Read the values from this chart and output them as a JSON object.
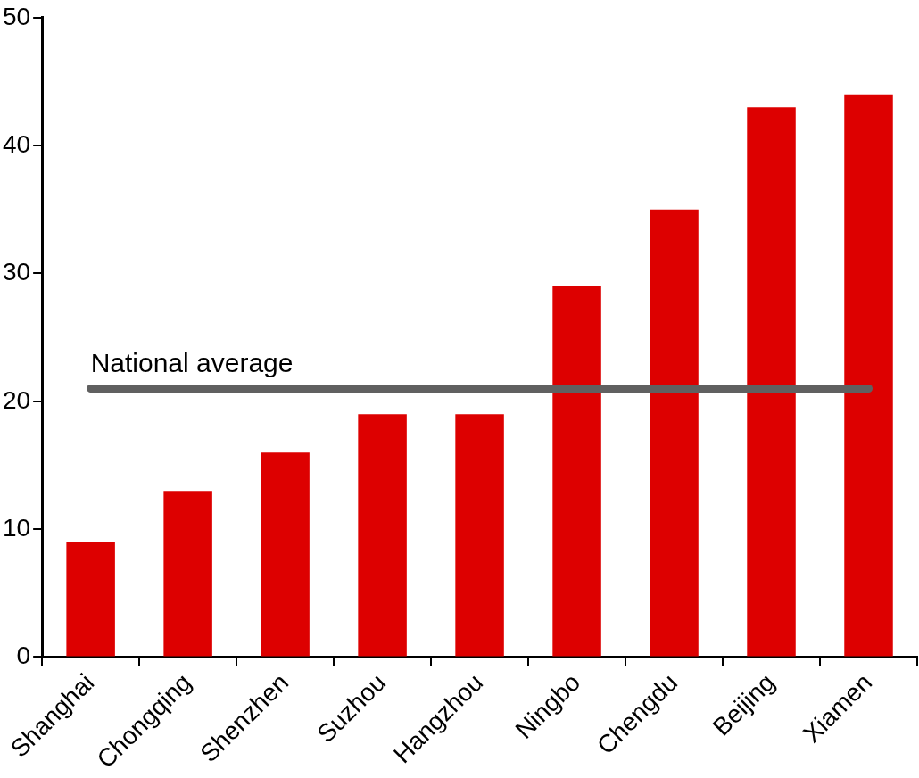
{
  "chart_data": {
    "type": "bar",
    "categories": [
      "Shanghai",
      "Chongqing",
      "Shenzhen",
      "Suzhou",
      "Hangzhou",
      "Ningbo",
      "Chengdu",
      "Beijing",
      "Xiamen"
    ],
    "values": [
      9,
      13,
      16,
      19,
      19,
      29,
      35,
      43,
      44
    ],
    "color": "#dd0000",
    "ylim": [
      0,
      50
    ],
    "yticks": [
      0,
      10,
      20,
      30,
      40,
      50
    ],
    "grid": false,
    "legend": false,
    "ref_lines": [
      {
        "axis": "y",
        "value": 21,
        "label": "National average",
        "color": "#606060"
      }
    ]
  }
}
